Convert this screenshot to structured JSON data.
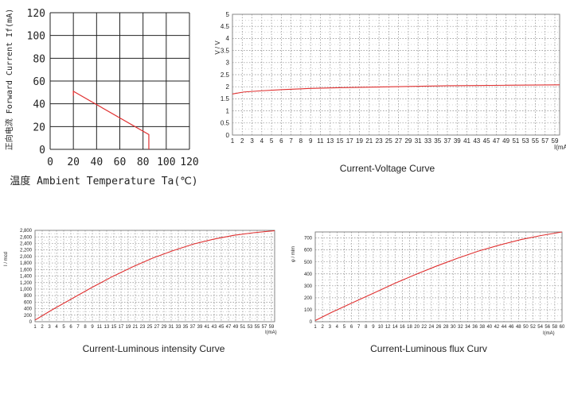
{
  "chart_data": [
    {
      "type": "line",
      "xlabel": "温度 Ambient Temperature Ta(℃)",
      "ylabel": "正向电流 Forward Current If(mA)",
      "xlim": [
        0,
        120
      ],
      "ylim": [
        0,
        120
      ],
      "x_ticks": [
        "0",
        "20",
        "40",
        "60",
        "80",
        "100",
        "120"
      ],
      "y_ticks": [
        "0",
        "20",
        "40",
        "60",
        "80",
        "100",
        "120"
      ],
      "grid": true,
      "series": [
        {
          "x": [
            20,
            20,
            85,
            85
          ],
          "y": [
            47,
            51,
            13,
            0
          ]
        }
      ]
    },
    {
      "type": "line",
      "title": "Current-Voltage Curve",
      "xlabel": "I(mA)",
      "ylabel": "V / V",
      "xlim": [
        1,
        60
      ],
      "ylim": [
        0,
        5
      ],
      "x_ticks": [
        "1",
        "2",
        "3",
        "4",
        "5",
        "6",
        "7",
        "8",
        "9",
        "11",
        "13",
        "15",
        "17",
        "19",
        "21",
        "23",
        "25",
        "27",
        "29",
        "31",
        "33",
        "35",
        "37",
        "39",
        "41",
        "43",
        "45",
        "47",
        "49",
        "51",
        "53",
        "55",
        "57",
        "59"
      ],
      "y_ticks": [
        "0",
        "0.5",
        "1",
        "1.5",
        "2",
        "2.5",
        "3",
        "3.5",
        "4",
        "4.5",
        "5"
      ],
      "grid": true,
      "series": [
        {
          "x": [
            1,
            3,
            6,
            10,
            15,
            20,
            25,
            30,
            35,
            40,
            45,
            50,
            55,
            60
          ],
          "y": [
            1.7,
            1.78,
            1.83,
            1.88,
            1.93,
            1.96,
            1.98,
            2.0,
            2.02,
            2.04,
            2.05,
            2.06,
            2.07,
            2.08
          ]
        }
      ]
    },
    {
      "type": "line",
      "title": "Current-Luminous intensity Curve",
      "xlabel": "I(mA)",
      "ylabel": "I / mcd",
      "xlim": [
        1,
        60
      ],
      "ylim": [
        0,
        2800
      ],
      "x_ticks": [
        "1",
        "2",
        "3",
        "4",
        "5",
        "6",
        "7",
        "8",
        "9",
        "11",
        "13",
        "15",
        "17",
        "19",
        "21",
        "23",
        "25",
        "27",
        "29",
        "31",
        "33",
        "35",
        "37",
        "39",
        "41",
        "43",
        "45",
        "47",
        "49",
        "51",
        "53",
        "55",
        "57",
        "59"
      ],
      "y_ticks": [
        "0",
        "200",
        "400",
        "600",
        "800",
        "1,000",
        "1,200",
        "1,400",
        "1,600",
        "1,800",
        "2,000",
        "2,200",
        "2,400",
        "2,600",
        "2,800"
      ],
      "grid": true,
      "series": [
        {
          "x": [
            1,
            5,
            10,
            15,
            20,
            25,
            30,
            35,
            40,
            45,
            50,
            55,
            60
          ],
          "y": [
            50,
            350,
            700,
            1050,
            1380,
            1680,
            1950,
            2180,
            2380,
            2530,
            2650,
            2730,
            2790
          ]
        }
      ]
    },
    {
      "type": "line",
      "title": "Current-Luminous flux Curv",
      "xlabel": "I(mA)",
      "ylabel": "φ / mlm",
      "xlim": [
        1,
        60
      ],
      "ylim": [
        0,
        750
      ],
      "x_ticks": [
        "1",
        "2",
        "3",
        "4",
        "5",
        "6",
        "7",
        "8",
        "9",
        "10",
        "12",
        "14",
        "16",
        "18",
        "20",
        "22",
        "24",
        "26",
        "28",
        "30",
        "32",
        "34",
        "36",
        "38",
        "40",
        "42",
        "44",
        "46",
        "48",
        "50",
        "52",
        "54",
        "56",
        "58",
        "60"
      ],
      "y_ticks": [
        "0",
        "100",
        "200",
        "300",
        "400",
        "500",
        "600",
        "700"
      ],
      "grid": true,
      "series": [
        {
          "x": [
            1,
            5,
            10,
            15,
            20,
            25,
            30,
            35,
            40,
            45,
            50,
            55,
            60
          ],
          "y": [
            10,
            80,
            160,
            240,
            320,
            395,
            465,
            530,
            590,
            640,
            685,
            720,
            750
          ]
        }
      ]
    }
  ]
}
